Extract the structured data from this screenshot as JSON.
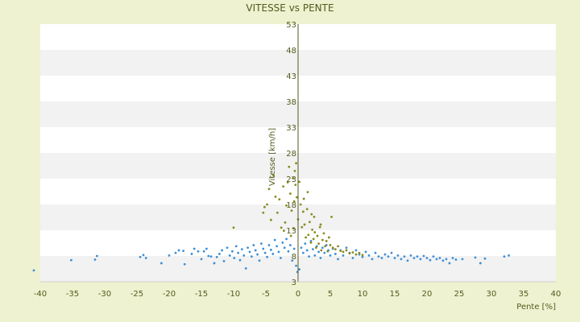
{
  "chart_data": {
    "type": "scatter",
    "title": "VITESSE vs PENTE",
    "xlabel": "Pente [%]",
    "ylabel": "Vitesse [km/h]",
    "xlim": [
      -40,
      40
    ],
    "ylim": [
      3,
      53
    ],
    "x_ticks": [
      "-40",
      "-35",
      "-30",
      "-25",
      "-20",
      "-15",
      "-10",
      "-5",
      "0",
      "5",
      "10",
      "15",
      "20",
      "25",
      "30",
      "35",
      "40"
    ],
    "y_ticks": [
      "3",
      "8",
      "13",
      "18",
      "23",
      "28",
      "33",
      "38",
      "43",
      "48",
      "53"
    ],
    "grid": "horizontal alternating bands",
    "legend": "none",
    "colors": {
      "blue_series": "#3d8fd6",
      "olive_series": "#8a8a1e",
      "axis": "#555a1e"
    },
    "series": [
      {
        "color": "#3d8fd6",
        "points": [
          [
            -41,
            5.2
          ],
          [
            -35.2,
            7.2
          ],
          [
            -31.5,
            7.3
          ],
          [
            -31.2,
            8.0
          ],
          [
            -24.5,
            7.8
          ],
          [
            -24,
            8.2
          ],
          [
            -23.6,
            7.6
          ],
          [
            -21.2,
            6.6
          ],
          [
            -20,
            8.1
          ],
          [
            -19,
            8.6
          ],
          [
            -18.5,
            9.1
          ],
          [
            -17.8,
            9.0
          ],
          [
            -17.6,
            6.4
          ],
          [
            -16.5,
            8.4
          ],
          [
            -16.1,
            9.4
          ],
          [
            -15.5,
            8.9
          ],
          [
            -15,
            7.4
          ],
          [
            -14.6,
            8.9
          ],
          [
            -14.2,
            9.4
          ],
          [
            -13.9,
            8.0
          ],
          [
            -13.5,
            7.9
          ],
          [
            -13,
            6.6
          ],
          [
            -12.6,
            7.8
          ],
          [
            -12.2,
            8.4
          ],
          [
            -11.8,
            9.1
          ],
          [
            -11.5,
            7.0
          ],
          [
            -11,
            9.6
          ],
          [
            -10.6,
            8.1
          ],
          [
            -10.2,
            8.9
          ],
          [
            -9.9,
            7.6
          ],
          [
            -9.6,
            9.9
          ],
          [
            -9.3,
            8.6
          ],
          [
            -9.0,
            7.2
          ],
          [
            -8.7,
            9.3
          ],
          [
            -8.4,
            8.1
          ],
          [
            -8.1,
            5.6
          ],
          [
            -7.8,
            9.6
          ],
          [
            -7.5,
            8.8
          ],
          [
            -7.2,
            7.9
          ],
          [
            -6.9,
            10.1
          ],
          [
            -6.6,
            9.1
          ],
          [
            -6.3,
            8.3
          ],
          [
            -6.0,
            7.1
          ],
          [
            -5.7,
            10.4
          ],
          [
            -5.4,
            9.4
          ],
          [
            -5.1,
            8.6
          ],
          [
            -4.8,
            7.8
          ],
          [
            -4.5,
            10.1
          ],
          [
            -4.2,
            9.2
          ],
          [
            -3.9,
            8.4
          ],
          [
            -3.6,
            11.1
          ],
          [
            -3.3,
            9.9
          ],
          [
            -3.0,
            8.8
          ],
          [
            -2.7,
            7.6
          ],
          [
            -2.4,
            10.6
          ],
          [
            -2.1,
            9.6
          ],
          [
            -1.8,
            11.3
          ],
          [
            -1.5,
            8.9
          ],
          [
            -1.2,
            10.1
          ],
          [
            -0.9,
            7.1
          ],
          [
            -0.6,
            9.4
          ],
          [
            -0.3,
            6.1
          ],
          [
            -0.1,
            4.9
          ],
          [
            0.2,
            5.4
          ],
          [
            0.5,
            9.6
          ],
          [
            0.8,
            8.6
          ],
          [
            1.1,
            10.4
          ],
          [
            1.4,
            9.1
          ],
          [
            1.7,
            7.9
          ],
          [
            2.0,
            10.9
          ],
          [
            2.3,
            9.3
          ],
          [
            2.6,
            8.1
          ],
          [
            2.9,
            9.9
          ],
          [
            3.2,
            8.8
          ],
          [
            3.5,
            7.6
          ],
          [
            3.8,
            9.6
          ],
          [
            4.1,
            8.6
          ],
          [
            4.4,
            10.1
          ],
          [
            4.7,
            9.1
          ],
          [
            5.0,
            8.1
          ],
          [
            5.4,
            9.4
          ],
          [
            5.8,
            8.4
          ],
          [
            6.2,
            7.4
          ],
          [
            6.6,
            9.1
          ],
          [
            7.0,
            8.1
          ],
          [
            7.5,
            9.6
          ],
          [
            8.0,
            8.6
          ],
          [
            8.5,
            7.6
          ],
          [
            9.0,
            9.1
          ],
          [
            9.5,
            8.3
          ],
          [
            10.0,
            7.8
          ],
          [
            10.5,
            8.8
          ],
          [
            11.0,
            8.1
          ],
          [
            11.5,
            7.4
          ],
          [
            12.0,
            8.6
          ],
          [
            12.5,
            7.9
          ],
          [
            13.0,
            7.6
          ],
          [
            13.5,
            8.3
          ],
          [
            14.0,
            7.9
          ],
          [
            14.5,
            8.6
          ],
          [
            15.0,
            7.6
          ],
          [
            15.5,
            8.1
          ],
          [
            16.0,
            7.4
          ],
          [
            16.5,
            7.9
          ],
          [
            17.0,
            7.1
          ],
          [
            17.5,
            8.1
          ],
          [
            18.0,
            7.6
          ],
          [
            18.5,
            7.9
          ],
          [
            19.0,
            7.4
          ],
          [
            19.5,
            8.0
          ],
          [
            20.0,
            7.6
          ],
          [
            20.5,
            7.2
          ],
          [
            21.0,
            7.9
          ],
          [
            21.5,
            7.4
          ],
          [
            22.0,
            7.6
          ],
          [
            22.5,
            7.1
          ],
          [
            23.0,
            7.4
          ],
          [
            23.5,
            6.6
          ],
          [
            24.0,
            7.6
          ],
          [
            24.5,
            7.3
          ],
          [
            25.5,
            7.4
          ],
          [
            27.5,
            7.7
          ],
          [
            28.3,
            6.6
          ],
          [
            29.0,
            7.5
          ],
          [
            32.0,
            7.9
          ],
          [
            32.7,
            8.1
          ]
        ]
      },
      {
        "color": "#8a8a1e",
        "points": [
          [
            -10,
            13.5
          ],
          [
            -5.4,
            16.4
          ],
          [
            -5.2,
            17.5
          ],
          [
            -4.8,
            18.0
          ],
          [
            -4.5,
            21.0
          ],
          [
            -4.2,
            15.0
          ],
          [
            -3.8,
            23.6
          ],
          [
            -3.5,
            19.5
          ],
          [
            -3.2,
            16.4
          ],
          [
            -2.9,
            19.0
          ],
          [
            -2.6,
            13.5
          ],
          [
            -2.3,
            21.5
          ],
          [
            -2.0,
            14.5
          ],
          [
            -1.8,
            17.8
          ],
          [
            -1.6,
            22.3
          ],
          [
            -1.4,
            25.3
          ],
          [
            -1.2,
            20.1
          ],
          [
            -1.0,
            16.8
          ],
          [
            -0.8,
            23.1
          ],
          [
            -0.6,
            18.6
          ],
          [
            -0.5,
            24.5
          ],
          [
            -0.4,
            21.8
          ],
          [
            -0.3,
            26.0
          ],
          [
            -0.2,
            19.4
          ],
          [
            0.0,
            15.1
          ],
          [
            0.2,
            22.4
          ],
          [
            0.4,
            18.0
          ],
          [
            0.6,
            13.6
          ],
          [
            0.8,
            16.6
          ],
          [
            1.0,
            14.1
          ],
          [
            1.2,
            11.6
          ],
          [
            1.4,
            17.1
          ],
          [
            1.6,
            12.1
          ],
          [
            1.8,
            14.6
          ],
          [
            2.0,
            10.6
          ],
          [
            2.2,
            13.1
          ],
          [
            2.4,
            11.3
          ],
          [
            2.6,
            12.6
          ],
          [
            2.8,
            9.6
          ],
          [
            3.0,
            11.9
          ],
          [
            3.2,
            10.4
          ],
          [
            3.4,
            13.6
          ],
          [
            3.6,
            9.1
          ],
          [
            3.8,
            11.1
          ],
          [
            4.0,
            12.4
          ],
          [
            4.2,
            9.9
          ],
          [
            4.4,
            10.9
          ],
          [
            4.6,
            8.9
          ],
          [
            4.8,
            11.6
          ],
          [
            5.0,
            10.1
          ],
          [
            5.4,
            9.6
          ],
          [
            5.8,
            9.3
          ],
          [
            6.2,
            9.9
          ],
          [
            6.6,
            9.0
          ],
          [
            7.0,
            8.8
          ],
          [
            7.5,
            9.1
          ],
          [
            8.0,
            8.5
          ],
          [
            8.5,
            8.7
          ],
          [
            9.0,
            8.3
          ],
          [
            9.5,
            8.6
          ],
          [
            10.0,
            8.2
          ],
          [
            1.5,
            20.4
          ],
          [
            2.5,
            15.6
          ],
          [
            3.5,
            14.1
          ],
          [
            0.9,
            19.1
          ],
          [
            -2.2,
            12.9
          ],
          [
            -1.1,
            11.9
          ],
          [
            -0.7,
            13.4
          ],
          [
            5.2,
            15.6
          ],
          [
            2.1,
            16.1
          ]
        ]
      }
    ]
  }
}
